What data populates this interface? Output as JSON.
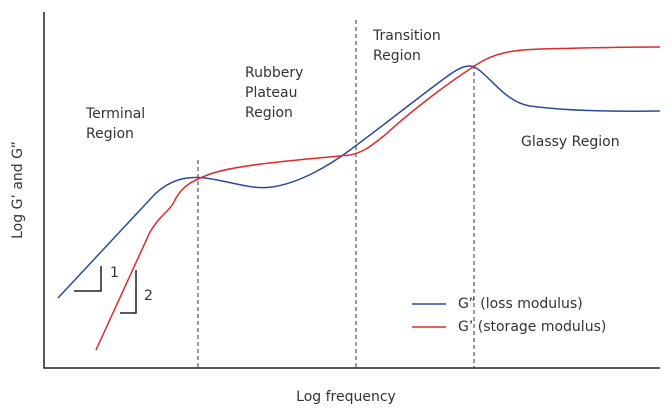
{
  "axes": {
    "x_label": "Log frequency",
    "y_label": "Log G’ and G”"
  },
  "regions": {
    "terminal": [
      "Terminal",
      "Region"
    ],
    "rubbery": [
      "Rubbery",
      "Plateau",
      "Region"
    ],
    "transition": [
      "Transition",
      "Region"
    ],
    "glassy": [
      "Glassy Region"
    ]
  },
  "slopes": [
    "1",
    "2"
  ],
  "legend": [
    {
      "name": "G” (loss modulus)",
      "color": "#2b4a9b"
    },
    {
      "name": "G’ (storage modulus)",
      "color": "#e0292b"
    }
  ]
}
